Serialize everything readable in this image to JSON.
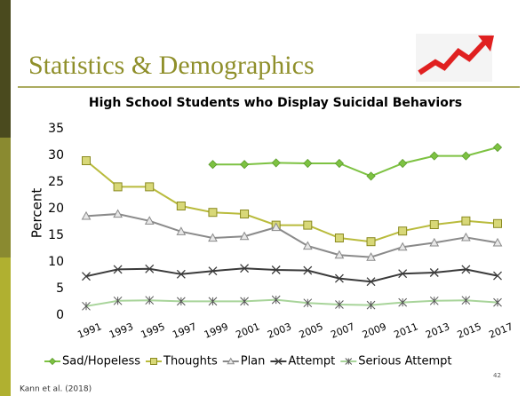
{
  "slide_title": "Statistics & Demographics",
  "source": "Kann et al. (2018)",
  "slide_number": "42",
  "chart_data": {
    "type": "line",
    "title": "High School Students who Display Suicidal Behaviors",
    "y_label": "Percent",
    "categories": [
      "1991",
      "1993",
      "1995",
      "1997",
      "1999",
      "2001",
      "2003",
      "2005",
      "2007",
      "2009",
      "2011",
      "2013",
      "2015",
      "2017"
    ],
    "ylim": [
      0,
      35
    ],
    "yticks": [
      0,
      5,
      10,
      15,
      20,
      25,
      30,
      35
    ],
    "legend": "bottom",
    "series": [
      {
        "name": "Sad/Hopeless",
        "color": "#7dc242",
        "marker": "diamond",
        "values": [
          null,
          null,
          null,
          null,
          28.3,
          28.3,
          28.6,
          28.5,
          28.5,
          26.1,
          28.5,
          29.9,
          29.9,
          31.5
        ]
      },
      {
        "name": "Thoughts",
        "color": "#b9bb3c",
        "marker": "square",
        "values": [
          29.0,
          24.1,
          24.1,
          20.5,
          19.3,
          19.0,
          16.9,
          16.9,
          14.5,
          13.8,
          15.8,
          17.0,
          17.7,
          17.2
        ]
      },
      {
        "name": "Plan",
        "color": "#8a8a8a",
        "marker": "triangle",
        "values": [
          18.6,
          19.0,
          17.7,
          15.7,
          14.5,
          14.8,
          16.5,
          13.0,
          11.3,
          10.9,
          12.8,
          13.6,
          14.6,
          13.6
        ]
      },
      {
        "name": "Attempt",
        "color": "#3a3a3a",
        "marker": "x",
        "values": [
          7.3,
          8.6,
          8.7,
          7.7,
          8.3,
          8.8,
          8.5,
          8.4,
          6.9,
          6.3,
          7.8,
          8.0,
          8.6,
          7.4
        ]
      },
      {
        "name": "Serious Attempt",
        "color": "#a8d49a",
        "marker": "star",
        "values": [
          1.7,
          2.7,
          2.8,
          2.6,
          2.6,
          2.6,
          2.9,
          2.3,
          2.0,
          1.9,
          2.4,
          2.7,
          2.8,
          2.4
        ]
      }
    ]
  }
}
